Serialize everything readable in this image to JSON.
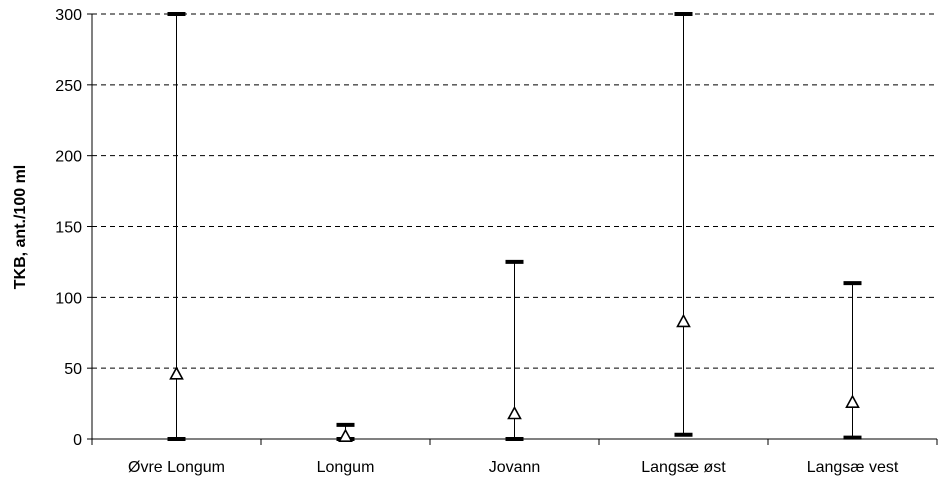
{
  "chart_data": {
    "type": "range",
    "title": "",
    "xlabel": "",
    "ylabel": "TKB, ant./100 ml",
    "ylim": [
      0,
      300
    ],
    "y_ticks": [
      0,
      50,
      100,
      150,
      200,
      250,
      300
    ],
    "grid": "horizontal dashed",
    "legend": "none",
    "categories": [
      "Øvre Longum",
      "Longum",
      "Jovann",
      "Langsæ øst",
      "Langsæ vest"
    ],
    "series": [
      {
        "values": [
          0,
          0,
          0,
          3,
          1
        ]
      },
      {
        "values": [
          300,
          10,
          125,
          300,
          110
        ]
      },
      {
        "values": [
          46,
          2,
          18,
          83,
          26
        ]
      }
    ]
  }
}
